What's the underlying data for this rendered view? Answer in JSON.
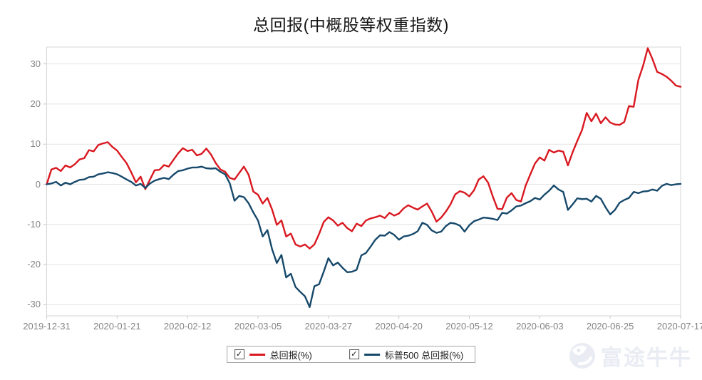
{
  "chart_data": {
    "type": "line",
    "title": "总回报(中概股等权重指数)",
    "x_labels": [
      "2019-12-31",
      "2020-01-21",
      "2020-02-12",
      "2020-03-05",
      "2020-03-27",
      "2020-04-20",
      "2020-05-12",
      "2020-06-03",
      "2020-06-25",
      "2020-07-17"
    ],
    "y_ticks": [
      30,
      20,
      10,
      0,
      -10,
      -20,
      -30
    ],
    "ylim": [
      -33,
      34
    ],
    "grid": "horizontal",
    "legend_position": "bottom",
    "series": [
      {
        "name": "总回报(%)",
        "color": "#d91820",
        "checked": true,
        "values": [
          0,
          3.7,
          4.1,
          3.3,
          4.7,
          4.2,
          5.0,
          6.2,
          6.5,
          8.5,
          8.2,
          9.8,
          10.2,
          10.5,
          9.3,
          8.4,
          6.8,
          5.3,
          3.0,
          0.5,
          1.9,
          -1.2,
          1.2,
          3.5,
          3.6,
          4.8,
          4.4,
          6.1,
          7.7,
          9.0,
          8.3,
          8.6,
          7.2,
          7.6,
          8.9,
          7.4,
          5.3,
          3.7,
          3.1,
          1.6,
          1.2,
          2.8,
          4.4,
          2.4,
          -1.8,
          -2.6,
          -4.8,
          -3.4,
          -6.3,
          -10.1,
          -9.0,
          -13.0,
          -12.3,
          -15.0,
          -15.5,
          -15.0,
          -16.0,
          -15.0,
          -12.4,
          -9.4,
          -8.2,
          -9.0,
          -10.3,
          -9.6,
          -10.9,
          -11.7,
          -9.8,
          -10.4,
          -9.0,
          -8.5,
          -8.2,
          -7.8,
          -8.4,
          -7.1,
          -7.8,
          -7.3,
          -6.0,
          -5.2,
          -5.8,
          -6.3,
          -5.5,
          -4.8,
          -6.8,
          -9.3,
          -8.3,
          -6.8,
          -5.0,
          -2.5,
          -1.7,
          -2.1,
          -3.0,
          -1.5,
          1.2,
          2.0,
          0.4,
          -3.0,
          -6.1,
          -6.2,
          -3.3,
          -2.2,
          -3.9,
          -4.3,
          -0.3,
          2.5,
          5.2,
          6.7,
          5.9,
          8.6,
          7.9,
          8.4,
          8.1,
          4.7,
          8.0,
          10.8,
          13.5,
          17.8,
          15.7,
          17.6,
          15.2,
          16.7,
          15.4,
          14.9,
          14.8,
          15.5,
          19.5,
          19.3,
          26.0,
          29.5,
          33.9,
          31.2,
          28.0,
          27.5,
          26.8,
          25.8,
          24.6,
          24.3
        ]
      },
      {
        "name": "标普500 总回报(%)",
        "color": "#17496b",
        "checked": true,
        "values": [
          0,
          0.2,
          0.6,
          -0.3,
          0.4,
          0.0,
          0.6,
          1.1,
          1.2,
          1.8,
          1.9,
          2.5,
          2.7,
          3.0,
          2.8,
          2.5,
          1.9,
          1.2,
          0.6,
          -0.3,
          0.1,
          -0.9,
          0.2,
          0.9,
          1.3,
          1.6,
          1.3,
          2.4,
          3.3,
          3.5,
          3.9,
          4.2,
          4.2,
          4.4,
          4.0,
          3.9,
          4.0,
          3.1,
          2.5,
          0.2,
          -4.1,
          -2.9,
          -3.2,
          -4.7,
          -7.0,
          -9.0,
          -13.0,
          -11.4,
          -16.2,
          -19.6,
          -17.6,
          -23.2,
          -22.3,
          -25.6,
          -26.8,
          -27.9,
          -30.6,
          -25.4,
          -24.9,
          -21.8,
          -18.4,
          -20.2,
          -19.5,
          -20.8,
          -21.9,
          -21.8,
          -21.3,
          -17.7,
          -17.1,
          -15.5,
          -13.8,
          -12.7,
          -12.8,
          -11.9,
          -12.6,
          -13.8,
          -13.0,
          -12.8,
          -12.4,
          -11.7,
          -9.6,
          -10.1,
          -11.5,
          -12.1,
          -11.8,
          -10.4,
          -9.6,
          -9.8,
          -10.3,
          -11.8,
          -10.2,
          -9.2,
          -8.8,
          -8.3,
          -8.4,
          -8.6,
          -8.9,
          -7.1,
          -7.3,
          -6.5,
          -5.5,
          -5.3,
          -4.7,
          -4.2,
          -3.4,
          -3.8,
          -2.6,
          -1.6,
          -0.3,
          -1.3,
          -1.9,
          -6.4,
          -5.0,
          -3.5,
          -3.7,
          -3.6,
          -4.3,
          -2.9,
          -3.6,
          -5.7,
          -7.5,
          -6.4,
          -4.6,
          -3.9,
          -3.4,
          -1.9,
          -2.2,
          -1.8,
          -1.7,
          -1.3,
          -1.6,
          -0.4,
          0.1,
          -0.2,
          0.0,
          0.1
        ]
      }
    ]
  },
  "legend": {
    "checkbox_glyph": "✓"
  },
  "watermark": {
    "text": "富途牛牛"
  },
  "colors": {
    "grid": "#e4e4e4",
    "plot_border": "#d4d4d4",
    "tick": "#c9c9c9",
    "axis_text": "#848484",
    "watermark": "#e9ecf3"
  }
}
